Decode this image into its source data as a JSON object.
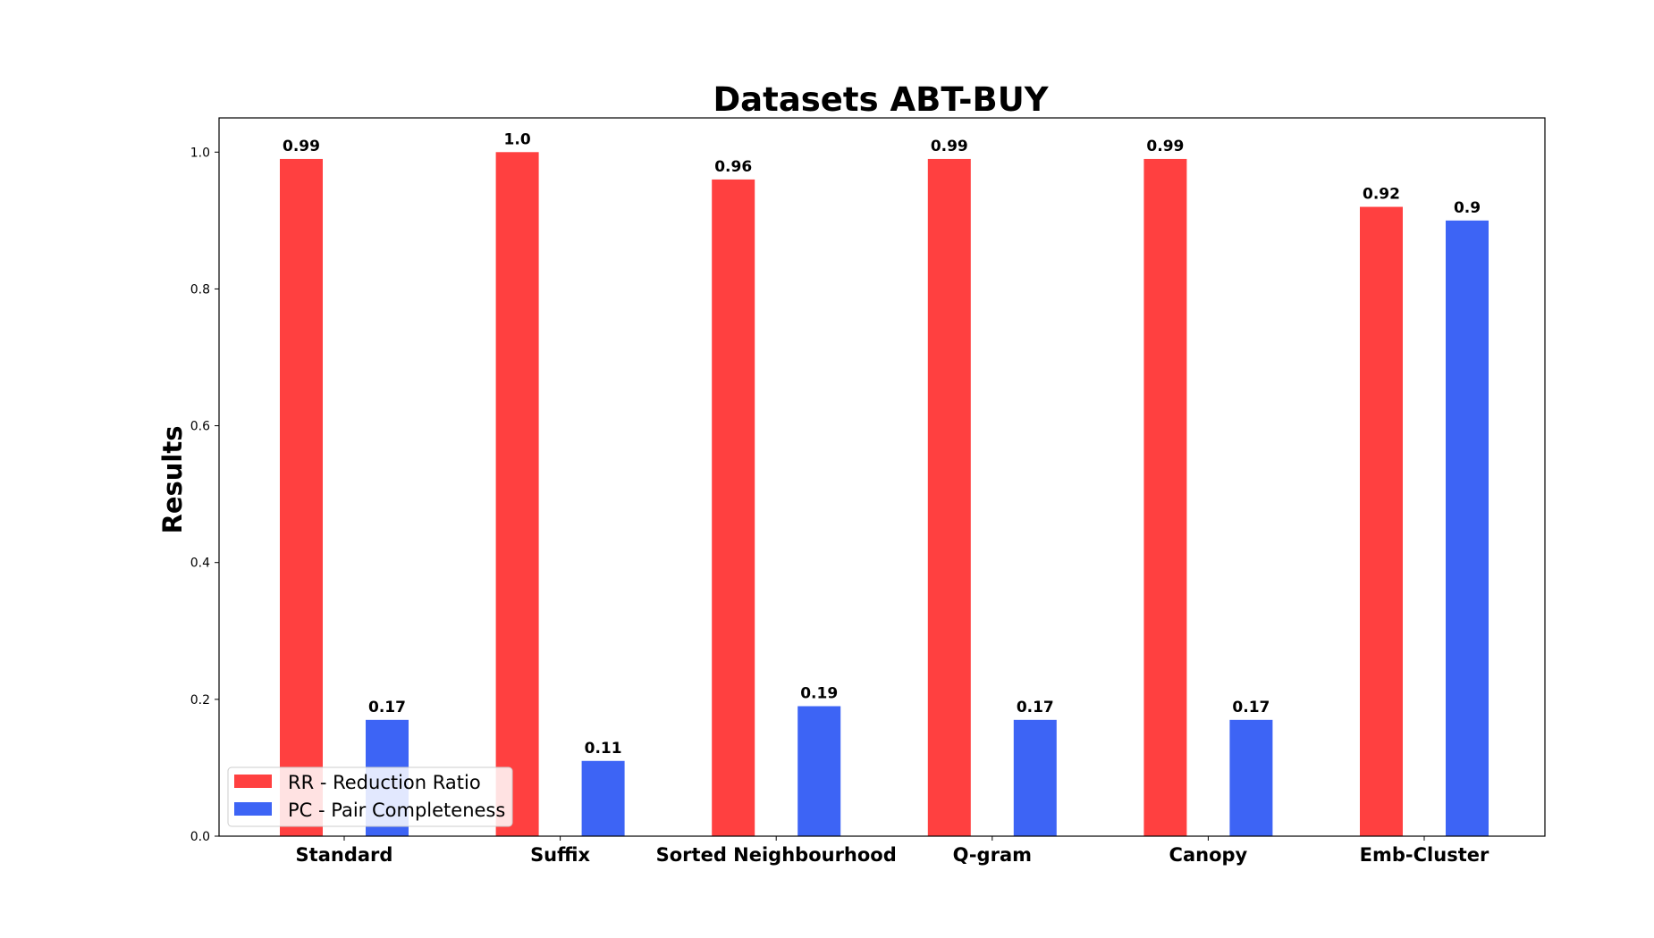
{
  "chart_data": {
    "type": "bar",
    "title": "Datasets ABT-BUY",
    "xlabel": "",
    "ylabel": "Results",
    "ylim": [
      0,
      1.05
    ],
    "yticks": [
      "0.0",
      "0.2",
      "0.4",
      "0.6",
      "0.8",
      "1.0"
    ],
    "categories": [
      "Standard",
      "Suffix",
      "Sorted Neighbourhood",
      "Q-gram",
      "Canopy",
      "Emb-Cluster"
    ],
    "series": [
      {
        "name": "RR - Reduction Ratio",
        "color": "#ff4040",
        "values": [
          0.99,
          1.0,
          0.96,
          0.99,
          0.99,
          0.92
        ],
        "labels": [
          "0.99",
          "1.0",
          "0.96",
          "0.99",
          "0.99",
          "0.92"
        ]
      },
      {
        "name": "PC - Pair Completeness",
        "color": "#3d64f5",
        "values": [
          0.17,
          0.11,
          0.19,
          0.17,
          0.17,
          0.9
        ],
        "labels": [
          "0.17",
          "0.11",
          "0.19",
          "0.17",
          "0.17",
          "0.9"
        ]
      }
    ],
    "grid": false,
    "legend_position": "lower-left"
  }
}
